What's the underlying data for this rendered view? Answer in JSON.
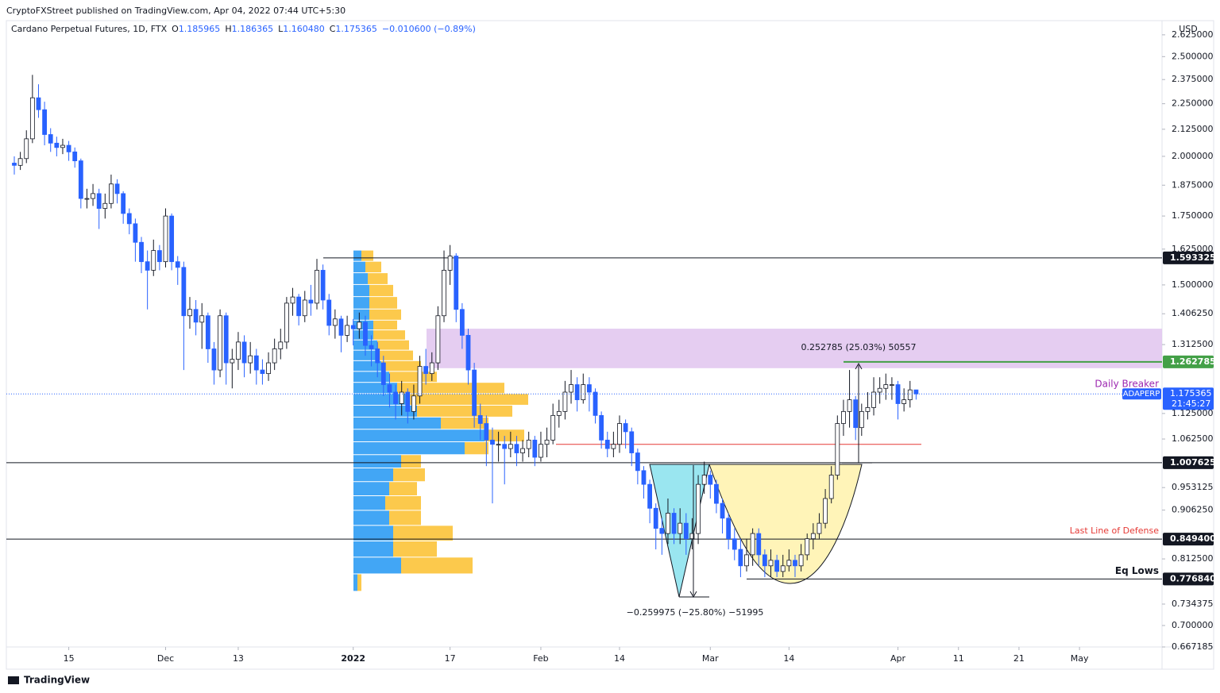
{
  "chart_data": {
    "type": "candlestick",
    "published": "CryptoFXStreet published on TradingView.com, Apr 04, 2022 07:44 UTC+5:30",
    "title": "Cardano Perpetual Futures, 1D, FTX",
    "header_fields": [
      [
        "O",
        "1.185965"
      ],
      [
        "H",
        "1.186365"
      ],
      [
        "L",
        "1.160480"
      ],
      [
        "C",
        "1.175365"
      ],
      [
        "",
        "−0.010600 (−0.89%)"
      ]
    ],
    "currency": "USD",
    "brand": "TradingView",
    "log_scale": true,
    "grid": false,
    "ylim": [
      0.667185,
      2.7
    ],
    "yticks": [
      {
        "value": 2.625,
        "label": "2.625000"
      },
      {
        "value": 2.5,
        "label": "2.500000"
      },
      {
        "value": 2.375,
        "label": "2.375000"
      },
      {
        "value": 2.25,
        "label": "2.250000"
      },
      {
        "value": 2.125,
        "label": "2.125000"
      },
      {
        "value": 2.0,
        "label": "2.000000"
      },
      {
        "value": 1.875,
        "label": "1.875000"
      },
      {
        "value": 1.75,
        "label": "1.750000"
      },
      {
        "value": 1.625,
        "label": "1.625000"
      },
      {
        "value": 1.5,
        "label": "1.500000"
      },
      {
        "value": 1.40625,
        "label": "1.406250"
      },
      {
        "value": 1.3125,
        "label": "1.312500"
      },
      {
        "value": 1.125,
        "label": "1.125000"
      },
      {
        "value": 1.0625,
        "label": "1.062500"
      },
      {
        "value": 0.953125,
        "label": "0.953125"
      },
      {
        "value": 0.90625,
        "label": "0.906250"
      },
      {
        "value": 0.8125,
        "label": "0.812500"
      },
      {
        "value": 0.734375,
        "label": "0.734375"
      },
      {
        "value": 0.7,
        "label": "0.700000"
      },
      {
        "value": 0.667185,
        "label": "0.667185"
      }
    ],
    "xticks": [
      {
        "value": 9,
        "label": "15"
      },
      {
        "value": 25,
        "label": "Dec"
      },
      {
        "value": 37,
        "label": "13"
      },
      {
        "value": 56,
        "label": "2022"
      },
      {
        "value": 72,
        "label": "17"
      },
      {
        "value": 87,
        "label": "Feb"
      },
      {
        "value": 100,
        "label": "14"
      },
      {
        "value": 115,
        "label": "Mar"
      },
      {
        "value": 128,
        "label": "14"
      },
      {
        "value": 146,
        "label": "Apr"
      },
      {
        "value": 156,
        "label": "11"
      },
      {
        "value": 166,
        "label": "21"
      },
      {
        "value": 176,
        "label": "May"
      }
    ],
    "up_color": "#ffffff",
    "down_color": "#2962ff",
    "ohlc": [
      [
        1.97,
        2.0,
        1.92,
        1.96
      ],
      [
        1.96,
        2.02,
        1.94,
        1.99
      ],
      [
        1.99,
        2.12,
        1.97,
        2.08
      ],
      [
        2.08,
        2.4,
        2.06,
        2.28
      ],
      [
        2.28,
        2.35,
        2.18,
        2.22
      ],
      [
        2.22,
        2.26,
        2.05,
        2.1
      ],
      [
        2.1,
        2.13,
        2.02,
        2.06
      ],
      [
        2.06,
        2.09,
        2.0,
        2.04
      ],
      [
        2.04,
        2.08,
        2.01,
        2.05
      ],
      [
        2.05,
        2.07,
        1.98,
        2.02
      ],
      [
        2.02,
        2.04,
        1.95,
        1.98
      ],
      [
        1.98,
        1.99,
        1.78,
        1.82
      ],
      [
        1.82,
        1.86,
        1.78,
        1.82
      ],
      [
        1.82,
        1.88,
        1.79,
        1.84
      ],
      [
        1.84,
        1.86,
        1.7,
        1.78
      ],
      [
        1.78,
        1.84,
        1.74,
        1.8
      ],
      [
        1.8,
        1.92,
        1.78,
        1.88
      ],
      [
        1.88,
        1.9,
        1.8,
        1.84
      ],
      [
        1.84,
        1.85,
        1.72,
        1.76
      ],
      [
        1.76,
        1.78,
        1.68,
        1.72
      ],
      [
        1.72,
        1.74,
        1.58,
        1.65
      ],
      [
        1.65,
        1.67,
        1.54,
        1.58
      ],
      [
        1.58,
        1.62,
        1.42,
        1.55
      ],
      [
        1.55,
        1.66,
        1.53,
        1.62
      ],
      [
        1.62,
        1.64,
        1.55,
        1.58
      ],
      [
        1.58,
        1.78,
        1.56,
        1.75
      ],
      [
        1.75,
        1.76,
        1.55,
        1.58
      ],
      [
        1.58,
        1.6,
        1.5,
        1.56
      ],
      [
        1.56,
        1.58,
        1.24,
        1.4
      ],
      [
        1.4,
        1.46,
        1.36,
        1.42
      ],
      [
        1.42,
        1.45,
        1.34,
        1.38
      ],
      [
        1.38,
        1.44,
        1.3,
        1.4
      ],
      [
        1.4,
        1.41,
        1.26,
        1.3
      ],
      [
        1.3,
        1.32,
        1.2,
        1.24
      ],
      [
        1.24,
        1.42,
        1.22,
        1.4
      ],
      [
        1.4,
        1.41,
        1.2,
        1.26
      ],
      [
        1.26,
        1.3,
        1.19,
        1.27
      ],
      [
        1.27,
        1.35,
        1.24,
        1.32
      ],
      [
        1.32,
        1.34,
        1.22,
        1.26
      ],
      [
        1.26,
        1.32,
        1.23,
        1.28
      ],
      [
        1.28,
        1.3,
        1.2,
        1.24
      ],
      [
        1.24,
        1.27,
        1.2,
        1.23
      ],
      [
        1.23,
        1.29,
        1.21,
        1.26
      ],
      [
        1.26,
        1.33,
        1.24,
        1.3
      ],
      [
        1.3,
        1.36,
        1.27,
        1.32
      ],
      [
        1.32,
        1.46,
        1.3,
        1.44
      ],
      [
        1.44,
        1.49,
        1.4,
        1.46
      ],
      [
        1.46,
        1.47,
        1.37,
        1.4
      ],
      [
        1.4,
        1.48,
        1.38,
        1.45
      ],
      [
        1.45,
        1.5,
        1.4,
        1.44
      ],
      [
        1.44,
        1.59,
        1.42,
        1.55
      ],
      [
        1.55,
        1.57,
        1.42,
        1.45
      ],
      [
        1.45,
        1.47,
        1.34,
        1.37
      ],
      [
        1.37,
        1.42,
        1.33,
        1.39
      ],
      [
        1.39,
        1.4,
        1.29,
        1.34
      ],
      [
        1.34,
        1.4,
        1.32,
        1.37
      ],
      [
        1.37,
        1.39,
        1.31,
        1.36
      ],
      [
        1.36,
        1.41,
        1.33,
        1.38
      ],
      [
        1.38,
        1.4,
        1.28,
        1.31
      ],
      [
        1.31,
        1.34,
        1.25,
        1.3
      ],
      [
        1.3,
        1.32,
        1.22,
        1.26
      ],
      [
        1.26,
        1.28,
        1.17,
        1.2
      ],
      [
        1.2,
        1.23,
        1.14,
        1.18
      ],
      [
        1.18,
        1.2,
        1.11,
        1.15
      ],
      [
        1.15,
        1.21,
        1.12,
        1.18
      ],
      [
        1.18,
        1.19,
        1.1,
        1.13
      ],
      [
        1.13,
        1.2,
        1.11,
        1.17
      ],
      [
        1.17,
        1.28,
        1.15,
        1.25
      ],
      [
        1.25,
        1.3,
        1.2,
        1.23
      ],
      [
        1.23,
        1.29,
        1.21,
        1.26
      ],
      [
        1.26,
        1.43,
        1.24,
        1.4
      ],
      [
        1.4,
        1.62,
        1.38,
        1.55
      ],
      [
        1.55,
        1.64,
        1.5,
        1.6
      ],
      [
        1.6,
        1.61,
        1.38,
        1.42
      ],
      [
        1.42,
        1.44,
        1.3,
        1.34
      ],
      [
        1.34,
        1.36,
        1.2,
        1.24
      ],
      [
        1.24,
        1.26,
        1.09,
        1.12
      ],
      [
        1.12,
        1.15,
        1.06,
        1.1
      ],
      [
        1.1,
        1.12,
        1.0,
        1.06
      ],
      [
        1.06,
        1.09,
        0.92,
        1.05
      ],
      [
        1.05,
        1.08,
        1.01,
        1.05
      ],
      [
        1.05,
        1.07,
        0.96,
        1.04
      ],
      [
        1.04,
        1.08,
        1.02,
        1.05
      ],
      [
        1.05,
        1.07,
        1.0,
        1.03
      ],
      [
        1.03,
        1.06,
        1.01,
        1.04
      ],
      [
        1.04,
        1.08,
        1.02,
        1.06
      ],
      [
        1.06,
        1.07,
        1.0,
        1.02
      ],
      [
        1.02,
        1.08,
        1.01,
        1.05
      ],
      [
        1.05,
        1.09,
        1.02,
        1.06
      ],
      [
        1.06,
        1.15,
        1.05,
        1.12
      ],
      [
        1.12,
        1.16,
        1.09,
        1.13
      ],
      [
        1.13,
        1.21,
        1.11,
        1.18
      ],
      [
        1.18,
        1.24,
        1.15,
        1.2
      ],
      [
        1.2,
        1.22,
        1.13,
        1.16
      ],
      [
        1.16,
        1.23,
        1.15,
        1.2
      ],
      [
        1.2,
        1.22,
        1.13,
        1.18
      ],
      [
        1.18,
        1.19,
        1.1,
        1.12
      ],
      [
        1.12,
        1.13,
        1.04,
        1.06
      ],
      [
        1.06,
        1.08,
        1.02,
        1.04
      ],
      [
        1.04,
        1.08,
        1.02,
        1.05
      ],
      [
        1.05,
        1.12,
        1.03,
        1.1
      ],
      [
        1.1,
        1.11,
        1.04,
        1.08
      ],
      [
        1.08,
        1.09,
        1.0,
        1.03
      ],
      [
        1.03,
        1.04,
        0.96,
        0.99
      ],
      [
        0.99,
        1.0,
        0.93,
        0.96
      ],
      [
        0.96,
        0.97,
        0.88,
        0.91
      ],
      [
        0.91,
        0.92,
        0.83,
        0.87
      ],
      [
        0.87,
        0.89,
        0.82,
        0.86
      ],
      [
        0.86,
        0.93,
        0.84,
        0.9
      ],
      [
        0.9,
        0.91,
        0.84,
        0.86
      ],
      [
        0.86,
        0.91,
        0.84,
        0.88
      ],
      [
        0.88,
        0.9,
        0.82,
        0.85
      ],
      [
        0.85,
        0.89,
        0.83,
        0.86
      ],
      [
        0.86,
        0.98,
        0.84,
        0.96
      ],
      [
        0.96,
        1.01,
        0.94,
        0.98
      ],
      [
        0.98,
        0.99,
        0.93,
        0.96
      ],
      [
        0.96,
        0.97,
        0.9,
        0.92
      ],
      [
        0.92,
        0.93,
        0.86,
        0.89
      ],
      [
        0.89,
        0.9,
        0.83,
        0.85
      ],
      [
        0.85,
        0.87,
        0.81,
        0.83
      ],
      [
        0.83,
        0.85,
        0.78,
        0.8
      ],
      [
        0.8,
        0.85,
        0.79,
        0.82
      ],
      [
        0.82,
        0.87,
        0.8,
        0.86
      ],
      [
        0.86,
        0.87,
        0.8,
        0.82
      ],
      [
        0.82,
        0.83,
        0.78,
        0.8
      ],
      [
        0.8,
        0.83,
        0.78,
        0.81
      ],
      [
        0.81,
        0.82,
        0.78,
        0.79
      ],
      [
        0.79,
        0.82,
        0.78,
        0.8
      ],
      [
        0.8,
        0.83,
        0.79,
        0.81
      ],
      [
        0.81,
        0.82,
        0.78,
        0.8
      ],
      [
        0.8,
        0.84,
        0.79,
        0.82
      ],
      [
        0.82,
        0.86,
        0.81,
        0.85
      ],
      [
        0.85,
        0.88,
        0.83,
        0.86
      ],
      [
        0.86,
        0.9,
        0.85,
        0.88
      ],
      [
        0.88,
        0.95,
        0.87,
        0.93
      ],
      [
        0.93,
        1.0,
        0.92,
        0.98
      ],
      [
        0.98,
        1.12,
        0.97,
        1.1
      ],
      [
        1.1,
        1.16,
        1.07,
        1.13
      ],
      [
        1.13,
        1.24,
        1.09,
        1.16
      ],
      [
        1.16,
        1.17,
        1.06,
        1.09
      ],
      [
        1.09,
        1.15,
        1.07,
        1.13
      ],
      [
        1.13,
        1.18,
        1.11,
        1.14
      ],
      [
        1.14,
        1.22,
        1.12,
        1.18
      ],
      [
        1.18,
        1.22,
        1.15,
        1.19
      ],
      [
        1.19,
        1.23,
        1.16,
        1.2
      ],
      [
        1.2,
        1.22,
        1.16,
        1.2
      ],
      [
        1.2,
        1.21,
        1.11,
        1.15
      ],
      [
        1.15,
        1.19,
        1.13,
        1.16
      ],
      [
        1.16,
        1.21,
        1.14,
        1.185965
      ],
      [
        1.185965,
        1.186365,
        1.16048,
        1.175365
      ]
    ],
    "volume_profile": {
      "prices": [
        0.77,
        0.8,
        0.83,
        0.86,
        0.89,
        0.92,
        0.95,
        0.98,
        1.01,
        1.04,
        1.07,
        1.1,
        1.13,
        1.16,
        1.19,
        1.22,
        1.25,
        1.28,
        1.31,
        1.34,
        1.37,
        1.4,
        1.44,
        1.48,
        1.52,
        1.56,
        1.6
      ],
      "up": [
        5,
        60,
        50,
        50,
        45,
        40,
        45,
        50,
        60,
        140,
        165,
        110,
        80,
        70,
        55,
        45,
        35,
        30,
        30,
        25,
        25,
        20,
        20,
        20,
        18,
        15,
        10
      ],
      "down": [
        5,
        90,
        55,
        75,
        40,
        45,
        35,
        40,
        25,
        30,
        50,
        60,
        120,
        150,
        135,
        60,
        50,
        45,
        40,
        40,
        30,
        40,
        35,
        30,
        25,
        20,
        15
      ],
      "up_color": "#2196f3",
      "down_color": "#fbc02d"
    },
    "zone": {
      "low": 1.245,
      "high": 1.36,
      "color": "#e1c4ee",
      "label": "Daily Breaker",
      "label_color": "#9c27b0"
    },
    "levels": [
      {
        "value": 1.593325,
        "label": "1.593325",
        "color": "#131722"
      },
      {
        "value": 1.262785,
        "label": "1.262785",
        "color": "#43a047"
      },
      {
        "value": 1.007625,
        "label": "1.007625",
        "color": "#131722"
      },
      {
        "value": 0.8494,
        "label": "0.849400",
        "color": "#131722",
        "note": "Last Line of Defense",
        "note_color": "#e53935"
      },
      {
        "value": 0.77684,
        "label": "0.776840",
        "color": "#131722",
        "note": "Eq Lows",
        "note_color": "#131722"
      },
      {
        "value": 1.05,
        "color": "#e53935"
      }
    ],
    "last_price": {
      "symbol": "ADAPERP",
      "value": 1.175365,
      "label": "1.175365",
      "countdown": "21:45:27",
      "color": "#2962ff"
    },
    "annotations": [
      "0.252785 (25.03%) 50557",
      "−0.259975 (−25.80%) −51995"
    ]
  }
}
